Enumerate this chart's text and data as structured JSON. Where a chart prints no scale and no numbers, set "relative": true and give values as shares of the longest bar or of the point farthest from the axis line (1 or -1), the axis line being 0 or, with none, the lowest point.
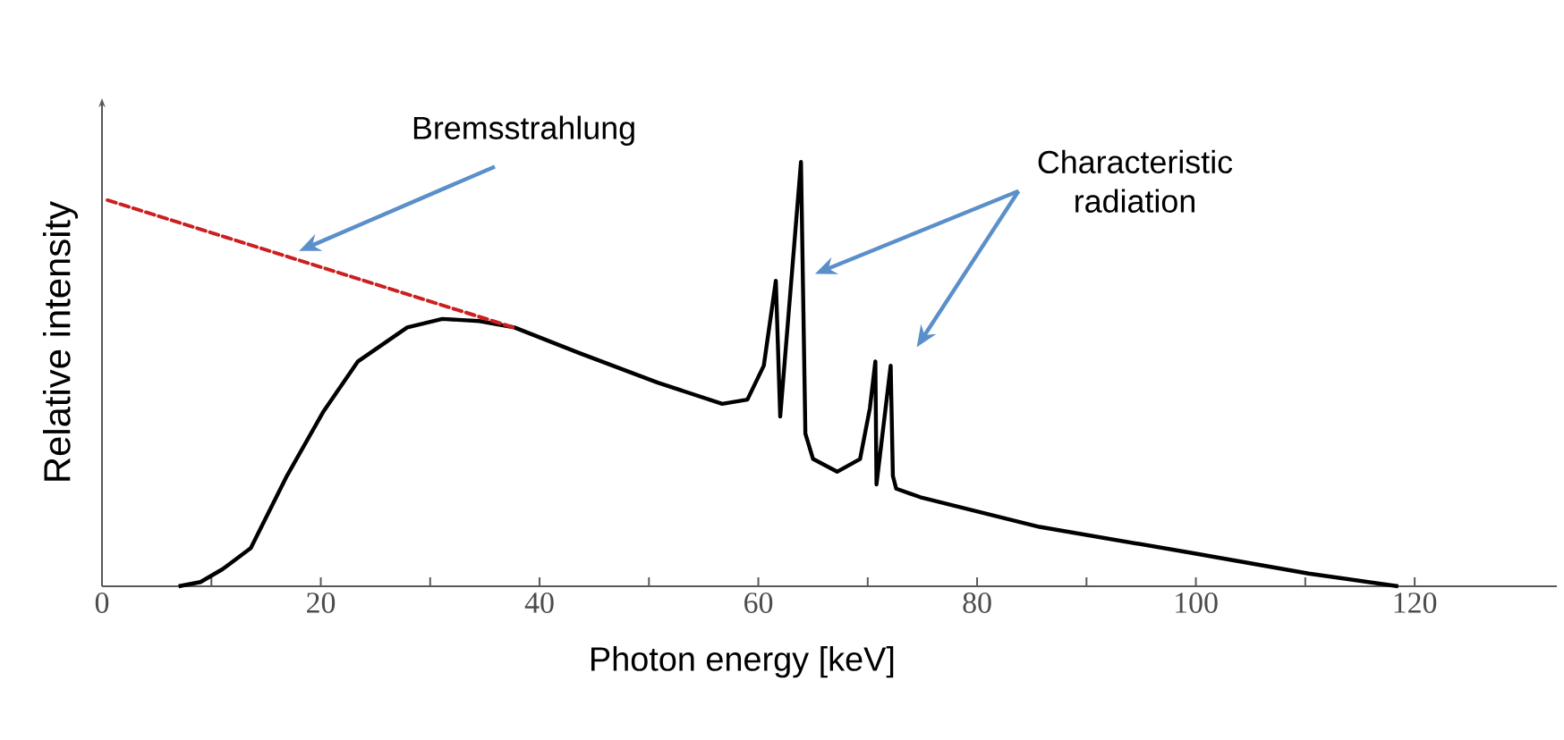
{
  "chart_data": {
    "type": "line",
    "relative": true,
    "xlabel": "Photon energy [keV]",
    "ylabel": "Relative intensity",
    "xlim": [
      0,
      133
    ],
    "xticks": [
      0,
      {
        "value": 10,
        "label": null
      },
      20,
      {
        "value": 30,
        "label": null
      },
      40,
      {
        "value": 50,
        "label": null
      },
      60,
      {
        "value": 70,
        "label": null
      },
      80,
      {
        "value": 90,
        "label": null
      },
      100,
      {
        "value": 110,
        "label": null
      },
      120
    ],
    "annotations": [
      {
        "text": "Bremsstrahlung",
        "x": 18,
        "y": 0.79
      },
      "Characteristic radiation"
    ],
    "series": [
      {
        "color": "#000000",
        "line_style": "solid",
        "x": [
          7,
          9,
          11,
          13.6,
          16.9,
          20.2,
          23.4,
          27.9,
          31.1,
          34.5,
          37.7,
          43.6,
          50.8,
          56.7,
          59,
          60.5,
          61.6,
          62,
          63.9,
          64.3,
          65,
          67.2,
          69.3,
          70.2,
          70.7,
          70.8,
          72.1,
          72.3,
          72.6,
          74.8,
          85.7,
          99.3,
          110.3,
          118.5
        ],
        "values": [
          0,
          0.01,
          0.04,
          0.09,
          0.26,
          0.41,
          0.53,
          0.61,
          0.63,
          0.625,
          0.61,
          0.55,
          0.48,
          0.43,
          0.44,
          0.52,
          0.72,
          0.4,
          1.0,
          0.36,
          0.3,
          0.27,
          0.3,
          0.42,
          0.53,
          0.24,
          0.52,
          0.26,
          0.23,
          0.21,
          0.14,
          0.08,
          0.03,
          0
        ]
      },
      {
        "color": "#cc1f1f",
        "line_style": "dashed",
        "x": [
          0.5,
          37.6
        ],
        "values": [
          0.91,
          0.61
        ]
      }
    ]
  }
}
